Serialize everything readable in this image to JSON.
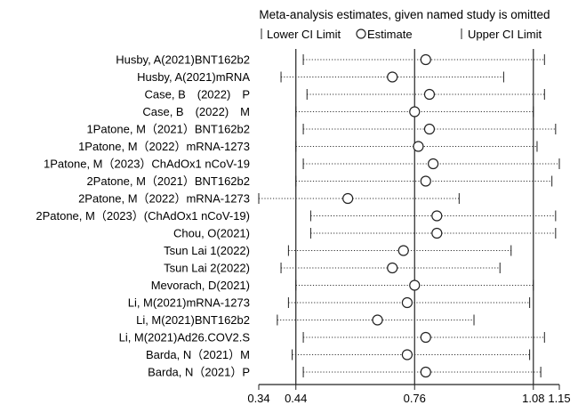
{
  "chart_data": {
    "type": "forest",
    "title": "Meta-analysis estimates, given named study is omitted",
    "legend": {
      "lower": "Lower CI Limit",
      "estimate": "Estimate",
      "upper": "Upper CI Limit"
    },
    "xlim": [
      0.34,
      1.15
    ],
    "xticks": [
      {
        "value": 0.34,
        "label": "0.34"
      },
      {
        "value": 0.44,
        "label": "0.44"
      },
      {
        "value": 0.76,
        "label": "0.76"
      },
      {
        "value": 1.08,
        "label": "1.08"
      },
      {
        "value": 1.15,
        "label": "1.15"
      }
    ],
    "reference_lines": [
      0.44,
      0.76,
      1.08
    ],
    "studies": [
      {
        "label": "Husby, A(2021)BNT162b2",
        "lower": 0.46,
        "estimate": 0.79,
        "upper": 1.11
      },
      {
        "label": "Husby, A(2021)mRNA",
        "lower": 0.4,
        "estimate": 0.7,
        "upper": 1.0
      },
      {
        "label": "Case, B　(2022)　P",
        "lower": 0.47,
        "estimate": 0.8,
        "upper": 1.11
      },
      {
        "label": "Case, B　(2022)　M",
        "lower": 0.44,
        "estimate": 0.76,
        "upper": 1.08
      },
      {
        "label": "1Patone, M（2021）BNT162b2",
        "lower": 0.46,
        "estimate": 0.8,
        "upper": 1.14
      },
      {
        "label": "1Patone, M（2022）mRNA-1273",
        "lower": 0.44,
        "estimate": 0.77,
        "upper": 1.09
      },
      {
        "label": "1Patone, M（2023）ChAdOx1 nCoV-19",
        "lower": 0.46,
        "estimate": 0.81,
        "upper": 1.15
      },
      {
        "label": "2Patone, M（2021）BNT162b2",
        "lower": 0.44,
        "estimate": 0.79,
        "upper": 1.13
      },
      {
        "label": "2Patone, M（2022）mRNA-1273",
        "lower": 0.34,
        "estimate": 0.58,
        "upper": 0.88
      },
      {
        "label": "2Patone, M（2023）(ChAdOx1 nCoV-19)",
        "lower": 0.48,
        "estimate": 0.82,
        "upper": 1.14
      },
      {
        "label": "Chou, O(2021)",
        "lower": 0.48,
        "estimate": 0.82,
        "upper": 1.14
      },
      {
        "label": "Tsun Lai  1(2022)",
        "lower": 0.42,
        "estimate": 0.73,
        "upper": 1.02
      },
      {
        "label": "Tsun Lai  2(2022)",
        "lower": 0.4,
        "estimate": 0.7,
        "upper": 0.99
      },
      {
        "label": "Mevorach, D(2021)",
        "lower": 0.44,
        "estimate": 0.76,
        "upper": 1.08
      },
      {
        "label": "Li, M(2021)mRNA-1273",
        "lower": 0.42,
        "estimate": 0.74,
        "upper": 1.07
      },
      {
        "label": "Li, M(2021)BNT162b2",
        "lower": 0.39,
        "estimate": 0.66,
        "upper": 0.92
      },
      {
        "label": "Li, M(2021)Ad26.COV2.S",
        "lower": 0.46,
        "estimate": 0.79,
        "upper": 1.11
      },
      {
        "label": "Barda, N（2021）M",
        "lower": 0.43,
        "estimate": 0.74,
        "upper": 1.07
      },
      {
        "label": "Barda, N（2021）P",
        "lower": 0.46,
        "estimate": 0.79,
        "upper": 1.1
      }
    ]
  }
}
